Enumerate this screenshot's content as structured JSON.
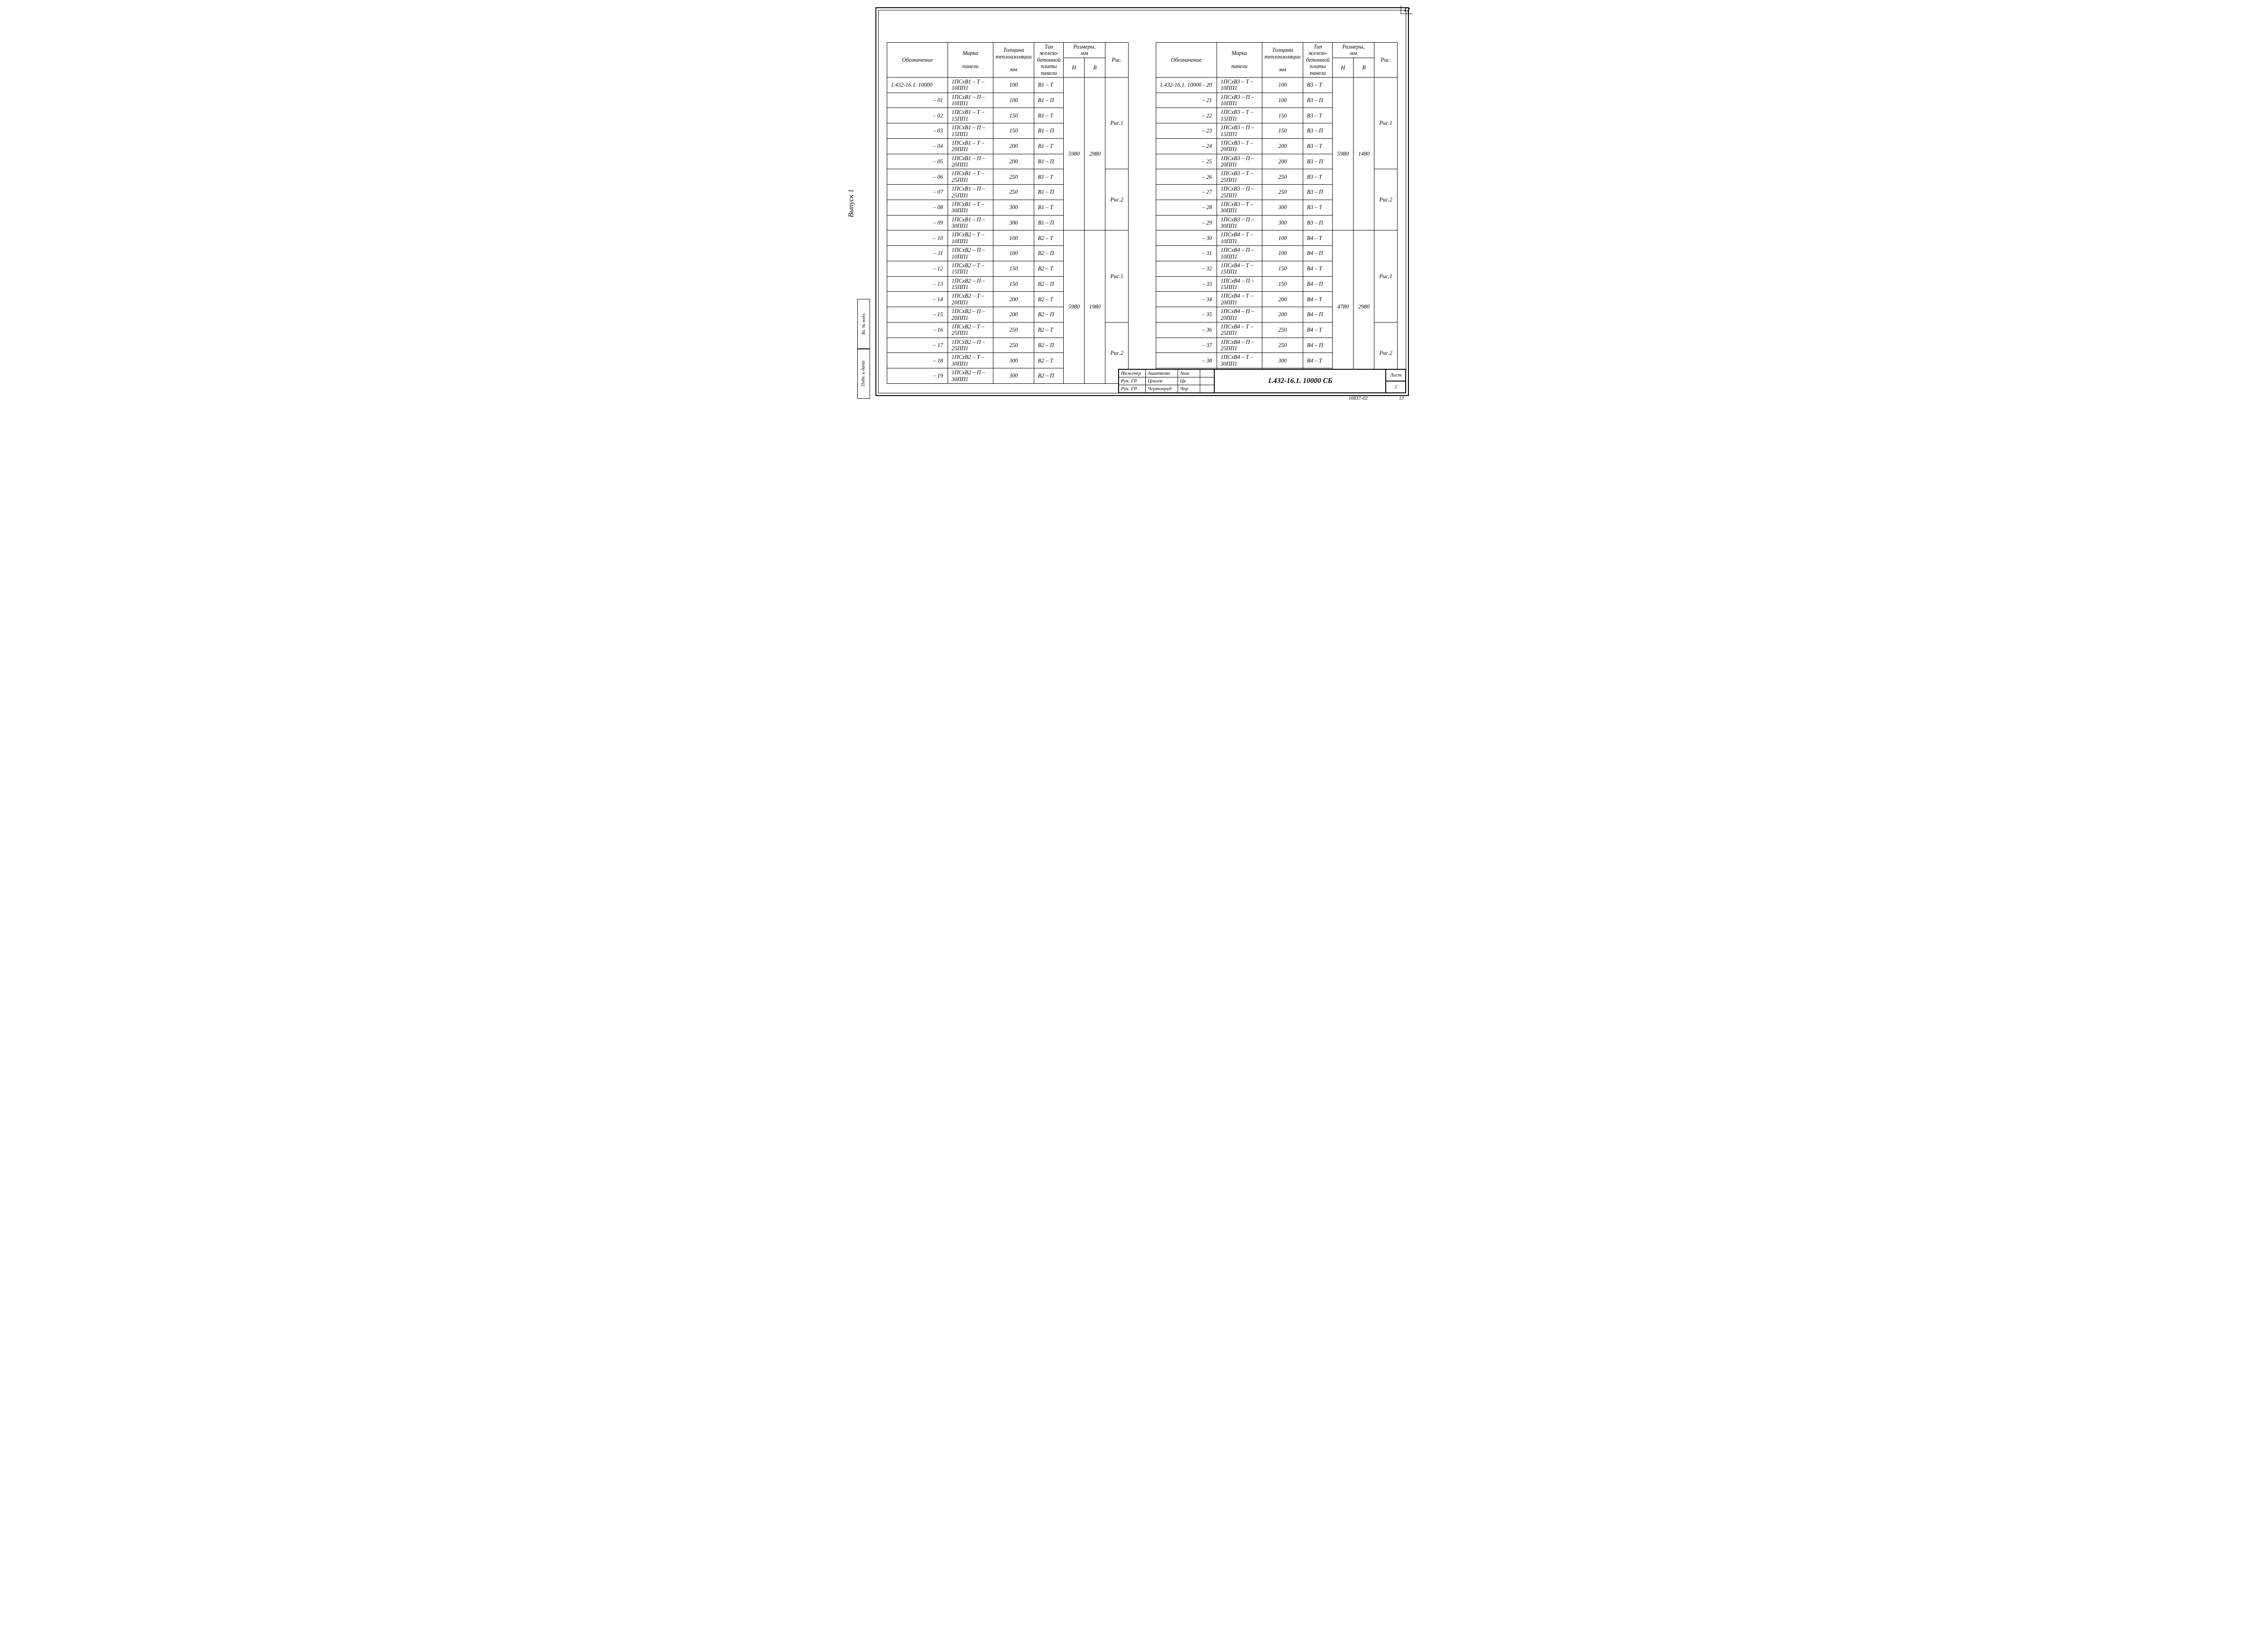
{
  "page_number_top": "12",
  "side_label": "Выпуск 1",
  "side_strip": [
    "Подп. и дата",
    "Вз. № подл."
  ],
  "headers": {
    "designation": "Обозначение",
    "mark_top": "Марка",
    "mark_bottom": "панели",
    "thickness_top": "Толщина",
    "thickness_mid": "теплоизоляции",
    "thickness_bot": "мм",
    "type_top": "Тип",
    "type_mid1": "железо-",
    "type_mid2": "бетонной",
    "type_mid3": "плиты",
    "type_bot": "панели",
    "dims": "Размеры,",
    "dims_unit": "мм",
    "dim_h": "Н",
    "dim_b": "В",
    "fig": "Рис."
  },
  "left_table": {
    "base_designation": "1.432-16.1. 10000",
    "groups": [
      {
        "H": "5980",
        "B": "2980",
        "fig_blocks": [
          {
            "fig": "Рис.1",
            "rows": [
              {
                "d": "1.432-16.1. 10000",
                "m": "1ПСхВ1 – Т – 10ПП1",
                "t": "100",
                "ty": "В1 – Т"
              },
              {
                "d": "– 01",
                "m": "1ПСхВ1 – П – 10ПП1",
                "t": "100",
                "ty": "В1 – П"
              },
              {
                "d": "– 02",
                "m": "1ПСхВ1 – Т – 15ПП1",
                "t": "150",
                "ty": "В1 – Т"
              },
              {
                "d": "– 03",
                "m": "1ПСхВ1 – П – 15ПП1",
                "t": "150",
                "ty": "В1 – П"
              },
              {
                "d": "– 04",
                "m": "1ПСхВ1 – Т – 20ПП1",
                "t": "200",
                "ty": "В1 – Т"
              },
              {
                "d": "– 05",
                "m": "1ПСхВ1 – П – 20ПП1",
                "t": "200",
                "ty": "В1 – П"
              }
            ]
          },
          {
            "fig": "Рис.2",
            "rows": [
              {
                "d": "– 06",
                "m": "1ПСхВ1 – Т – 25ПП1",
                "t": "250",
                "ty": "В1 – Т"
              },
              {
                "d": "– 07",
                "m": "1ПСхВ1 – П – 25ПП1",
                "t": "250",
                "ty": "В1 – П"
              },
              {
                "d": "– 08",
                "m": "1ПСхВ1 – Т – 30ПП1",
                "t": "300",
                "ty": "В1 – Т"
              },
              {
                "d": "– 09",
                "m": "1ПСхВ1 – П – 30ПП1",
                "t": "300",
                "ty": "В1 – П"
              }
            ]
          }
        ]
      },
      {
        "H": "5980",
        "B": "1980",
        "fig_blocks": [
          {
            "fig": "Рис.1",
            "rows": [
              {
                "d": "– 10",
                "m": "1ПСхВ2 – Т – 10ПП1",
                "t": "100",
                "ty": "В2 – Т"
              },
              {
                "d": "– 11",
                "m": "1ПСхВ2 – П – 10ПП1",
                "t": "100",
                "ty": "В2 – П"
              },
              {
                "d": "– 12",
                "m": "1ПСхВ2 – Т – 15ПП1",
                "t": "150",
                "ty": "В2 – Т"
              },
              {
                "d": "– 13",
                "m": "1ПСхВ2 – П – 15ПП1",
                "t": "150",
                "ty": "В2 – П"
              },
              {
                "d": "– 14",
                "m": "1ПСхВ2 – Т – 20ПП1",
                "t": "200",
                "ty": "В2 – Т"
              },
              {
                "d": "– 15",
                "m": "1ПСхВ2 – П – 20ПП1",
                "t": "200",
                "ty": "В2 – П"
              }
            ]
          },
          {
            "fig": "Рис.2",
            "rows": [
              {
                "d": "– 16",
                "m": "1ПСхВ2 – Т – 25ПП1",
                "t": "250",
                "ty": "В2 – Т"
              },
              {
                "d": "– 17",
                "m": "1ПСхВ2 – П – 25ПП1",
                "t": "250",
                "ty": "В2 – П"
              },
              {
                "d": "– 18",
                "m": "1ПСхВ2 – Т – 30ПП1",
                "t": "300",
                "ty": "В2 – Т"
              },
              {
                "d": "– 19",
                "m": "1ПСхВ2 – П – 30ПП1",
                "t": "300",
                "ty": "В2 – П"
              }
            ]
          }
        ]
      }
    ]
  },
  "right_table": {
    "groups": [
      {
        "H": "5980",
        "B": "1480",
        "fig_blocks": [
          {
            "fig": "Рис.1",
            "rows": [
              {
                "d": "1.432-16.1. 10000 - 20",
                "m": "1ПСхВ3 – Т – 10ПП1",
                "t": "100",
                "ty": "В3 – Т"
              },
              {
                "d": "– 21",
                "m": "1ПСхВ3 – П – 10ПП1",
                "t": "100",
                "ty": "В3 – П"
              },
              {
                "d": "– 22",
                "m": "1ПСхВ3 – Т – 15ПП1",
                "t": "150",
                "ty": "В3 – Т"
              },
              {
                "d": "– 23",
                "m": "1ПСхВ3 – П – 15ПП1",
                "t": "150",
                "ty": "В3 – П"
              },
              {
                "d": "– 24",
                "m": "1ПСхВ3 – Т – 20ПП1",
                "t": "200",
                "ty": "В3 – Т"
              },
              {
                "d": "– 25",
                "m": "1ПСхВ3 – П – 20ПП1",
                "t": "200",
                "ty": "В3 – П"
              }
            ]
          },
          {
            "fig": "Рис.2",
            "rows": [
              {
                "d": "– 26",
                "m": "1ПСхВ3 – Т – 25ПП1",
                "t": "250",
                "ty": "В3 – Т"
              },
              {
                "d": "– 27",
                "m": "1ПСхВ3 – П – 25ПП1",
                "t": "250",
                "ty": "В3 – П"
              },
              {
                "d": "– 28",
                "m": "1ПСхВ3 – Т – 30ПП1",
                "t": "300",
                "ty": "В3 – Т"
              },
              {
                "d": "– 29",
                "m": "1ПСхВ3 – П – 30ПП1",
                "t": "300",
                "ty": "В3 – П"
              }
            ]
          }
        ]
      },
      {
        "H": "4780",
        "B": "2980",
        "fig_blocks": [
          {
            "fig": "Рис.1",
            "rows": [
              {
                "d": "– 30",
                "m": "1ПСхВ4 – Т – 10ПП1",
                "t": "100",
                "ty": "В4 – Т"
              },
              {
                "d": "– 31",
                "m": "1ПСхВ4 – П – 10ПП1",
                "t": "100",
                "ty": "В4 – П"
              },
              {
                "d": "– 32",
                "m": "1ПСхВ4 – Т – 15ПП1",
                "t": "150",
                "ty": "В4 – Т"
              },
              {
                "d": "– 33",
                "m": "1ПСхВ4 – П – 15ПП1",
                "t": "150",
                "ty": "В4 – П"
              },
              {
                "d": "– 34",
                "m": "1ПСхВ4 – Т – 20ПП1",
                "t": "200",
                "ty": "В4 – Т"
              },
              {
                "d": "– 35",
                "m": "1ПСхВ4 – П – 20ПП1",
                "t": "200",
                "ty": "В4 – П"
              }
            ]
          },
          {
            "fig": "Рис.2",
            "rows": [
              {
                "d": "– 36",
                "m": "1ПСхВ4 – Т – 25ПП1",
                "t": "250",
                "ty": "В4 – Т"
              },
              {
                "d": "– 37",
                "m": "1ПСхВ4 – П – 25ПП1",
                "t": "250",
                "ty": "В4 – П"
              },
              {
                "d": "– 38",
                "m": "1ПСхВ4 – Т – 30ПП1",
                "t": "300",
                "ty": "В4 – Т"
              },
              {
                "d": "– 39",
                "m": "1ПСхВ4 – П – 30ПП1",
                "t": "300",
                "ty": "В4 – П"
              }
            ]
          }
        ]
      }
    ]
  },
  "stamp": {
    "roles": [
      {
        "role": "Инженер",
        "name": "Ашиткова",
        "sign": "Аши"
      },
      {
        "role": "Рук. ГР.",
        "name": "Цевлев",
        "sign": "Цв"
      },
      {
        "role": "Рук. ГР.",
        "name": "Чертопруд",
        "sign": "Чпр"
      }
    ],
    "doc_number": "1.432-16.1. 10000 СБ",
    "sheet_label": "Лист",
    "sheet_number": "2"
  },
  "footer_code": "16837-02",
  "footer_code2": "13"
}
